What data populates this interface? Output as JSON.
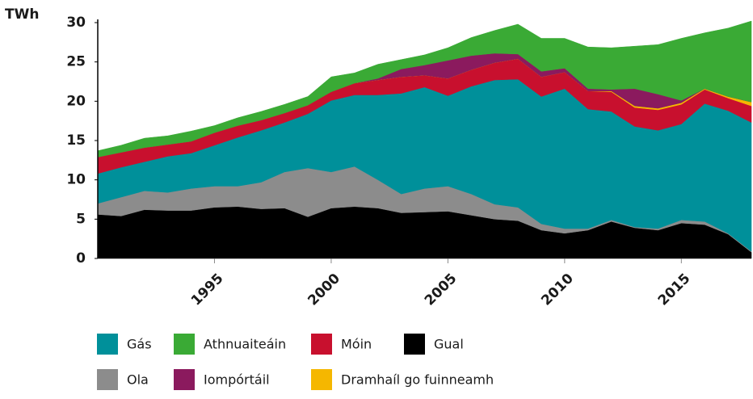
{
  "chart_data": {
    "type": "stacked_area",
    "y_label": "TWh",
    "x": [
      1990,
      1991,
      1992,
      1993,
      1994,
      1995,
      1996,
      1997,
      1998,
      1999,
      2000,
      2001,
      2002,
      2003,
      2004,
      2005,
      2006,
      2007,
      2008,
      2009,
      2010,
      2011,
      2012,
      2013,
      2014,
      2015,
      2016,
      2017,
      2018
    ],
    "xlim": [
      1990,
      2018
    ],
    "xticks": [
      1995,
      2000,
      2005,
      2010,
      2015
    ],
    "ylim": [
      0,
      30
    ],
    "yticks": [
      0,
      5,
      10,
      15,
      20,
      25,
      30
    ],
    "series": [
      {
        "name": "Gual",
        "color": "#000000",
        "values": [
          5.6,
          5.4,
          6.2,
          6.1,
          6.1,
          6.5,
          6.6,
          6.3,
          6.4,
          5.3,
          6.4,
          6.6,
          6.4,
          5.8,
          5.9,
          6.0,
          5.5,
          5.0,
          4.8,
          3.6,
          3.2,
          3.6,
          4.7,
          3.9,
          3.6,
          4.5,
          4.3,
          3.1,
          0.8
        ]
      },
      {
        "name": "Ola",
        "color": "#8c8c8c",
        "values": [
          1.4,
          2.4,
          2.4,
          2.3,
          2.8,
          2.7,
          2.6,
          3.4,
          4.6,
          6.2,
          4.6,
          5.1,
          3.6,
          2.4,
          3.0,
          3.2,
          2.7,
          1.9,
          1.7,
          0.8,
          0.6,
          0.2,
          0.2,
          0.1,
          0.2,
          0.4,
          0.4,
          0.1,
          0.1
        ]
      },
      {
        "name": "Gás",
        "color": "#00909a",
        "values": [
          3.8,
          3.8,
          3.7,
          4.6,
          4.5,
          5.2,
          6.2,
          6.6,
          6.3,
          6.9,
          9.1,
          9.1,
          10.8,
          12.8,
          12.9,
          11.5,
          13.7,
          15.8,
          16.3,
          16.2,
          17.8,
          15.2,
          13.8,
          12.8,
          12.5,
          12.2,
          15.0,
          15.6,
          16.4
        ]
      },
      {
        "name": "Móin",
        "color": "#c8102e",
        "values": [
          2.1,
          1.9,
          1.8,
          1.5,
          1.5,
          1.6,
          1.5,
          1.3,
          1.2,
          1.1,
          1.1,
          1.5,
          1.9,
          2.1,
          1.5,
          2.2,
          2.1,
          2.2,
          2.6,
          2.5,
          2.1,
          2.3,
          2.5,
          2.4,
          2.6,
          2.5,
          1.8,
          1.6,
          2.1
        ]
      },
      {
        "name": "Dramhaíl go fuinneamh",
        "color": "#f5b700",
        "values": [
          0,
          0,
          0,
          0,
          0,
          0,
          0,
          0,
          0,
          0,
          0,
          0,
          0,
          0,
          0,
          0,
          0,
          0,
          0,
          0,
          0,
          0,
          0.1,
          0.2,
          0.2,
          0.2,
          0.1,
          0.2,
          0.5
        ]
      },
      {
        "name": "Iompórtáil",
        "color": "#8b1a5e",
        "values": [
          0,
          0,
          0,
          0,
          0,
          0,
          0,
          0,
          0,
          0,
          0,
          0,
          0.2,
          1.0,
          1.3,
          2.3,
          1.8,
          1.2,
          0.6,
          0.7,
          0.5,
          0.3,
          0.2,
          2.2,
          1.8,
          0.3,
          0,
          0,
          0
        ]
      },
      {
        "name": "Athnuaiteáin",
        "color": "#3aaa35",
        "values": [
          0.8,
          0.9,
          1.2,
          1.1,
          1.3,
          0.9,
          1.0,
          1.1,
          1.1,
          1.1,
          1.9,
          1.3,
          1.8,
          1.2,
          1.3,
          1.6,
          2.3,
          2.9,
          3.8,
          4.2,
          3.8,
          5.3,
          5.3,
          5.4,
          6.3,
          7.9,
          7.1,
          8.7,
          10.3
        ]
      }
    ]
  }
}
